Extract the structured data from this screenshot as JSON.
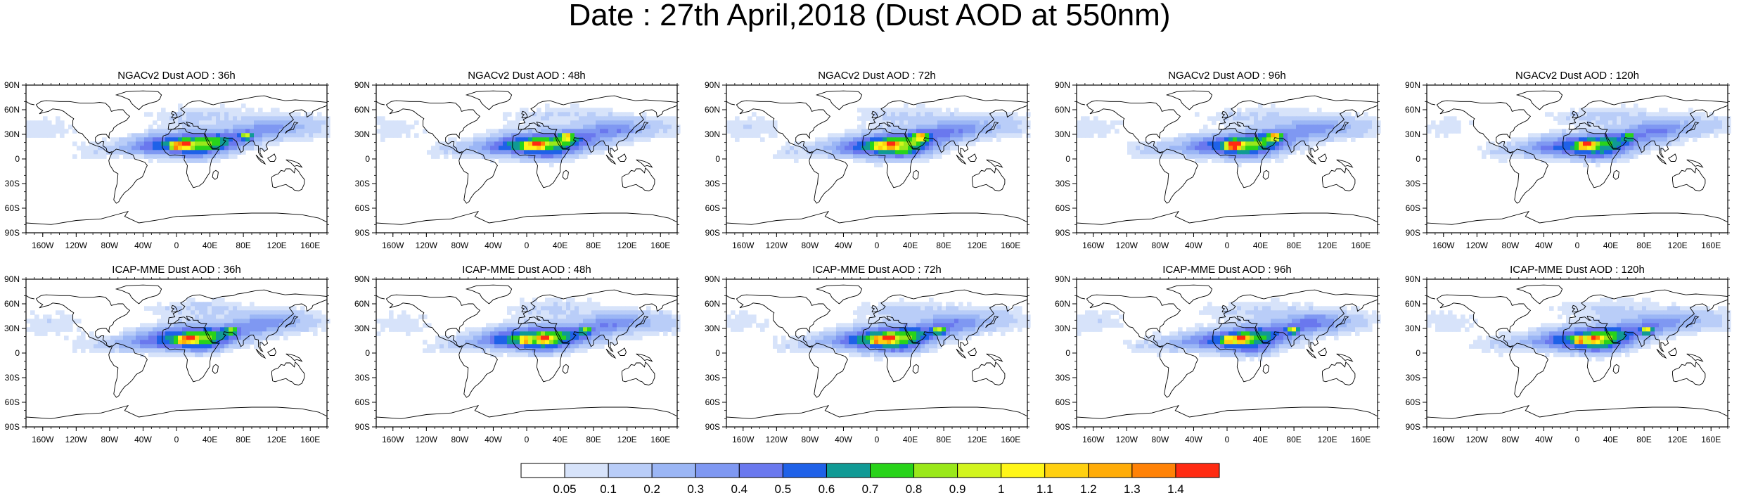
{
  "title": "Date : 27th April,2018 (Dust AOD at 550nm)",
  "chart_data": [
    {
      "type": "heatmap",
      "title": "NGACv2 Dust AOD : 36h"
    },
    {
      "type": "heatmap",
      "title": "NGACv2 Dust AOD : 48h"
    },
    {
      "type": "heatmap",
      "title": "NGACv2 Dust AOD : 72h"
    },
    {
      "type": "heatmap",
      "title": "NGACv2 Dust AOD : 96h"
    },
    {
      "type": "heatmap",
      "title": "NGACv2 Dust AOD : 120h"
    },
    {
      "type": "heatmap",
      "title": "ICAP-MME Dust AOD : 36h"
    },
    {
      "type": "heatmap",
      "title": "ICAP-MME Dust AOD : 48h"
    },
    {
      "type": "heatmap",
      "title": "ICAP-MME Dust AOD : 72h"
    },
    {
      "type": "heatmap",
      "title": "ICAP-MME Dust AOD : 96h"
    },
    {
      "type": "heatmap",
      "title": "ICAP-MME Dust AOD : 120h"
    }
  ],
  "axes": {
    "x_ticks": [
      "160W",
      "120W",
      "80W",
      "40W",
      "0",
      "40E",
      "80E",
      "120E",
      "160E"
    ],
    "y_ticks": [
      "90N",
      "60N",
      "30N",
      "0",
      "30S",
      "60S",
      "90S"
    ],
    "xlim": [
      -180,
      180
    ],
    "ylim": [
      -90,
      90
    ]
  },
  "colorbar": {
    "labels": [
      "0.05",
      "0.1",
      "0.2",
      "0.3",
      "0.4",
      "0.5",
      "0.6",
      "0.7",
      "0.8",
      "0.9",
      "1",
      "1.1",
      "1.2",
      "1.3",
      "1.4"
    ],
    "colors": [
      "#ffffff",
      "#d7e3fa",
      "#b9cdf8",
      "#9bb6f5",
      "#7f98f2",
      "#6a78ee",
      "#1f61e8",
      "#109a95",
      "#28d31a",
      "#9ae81a",
      "#d2f51e",
      "#fff618",
      "#ffd010",
      "#ffac08",
      "#ff8206",
      "#ff2b12"
    ]
  }
}
